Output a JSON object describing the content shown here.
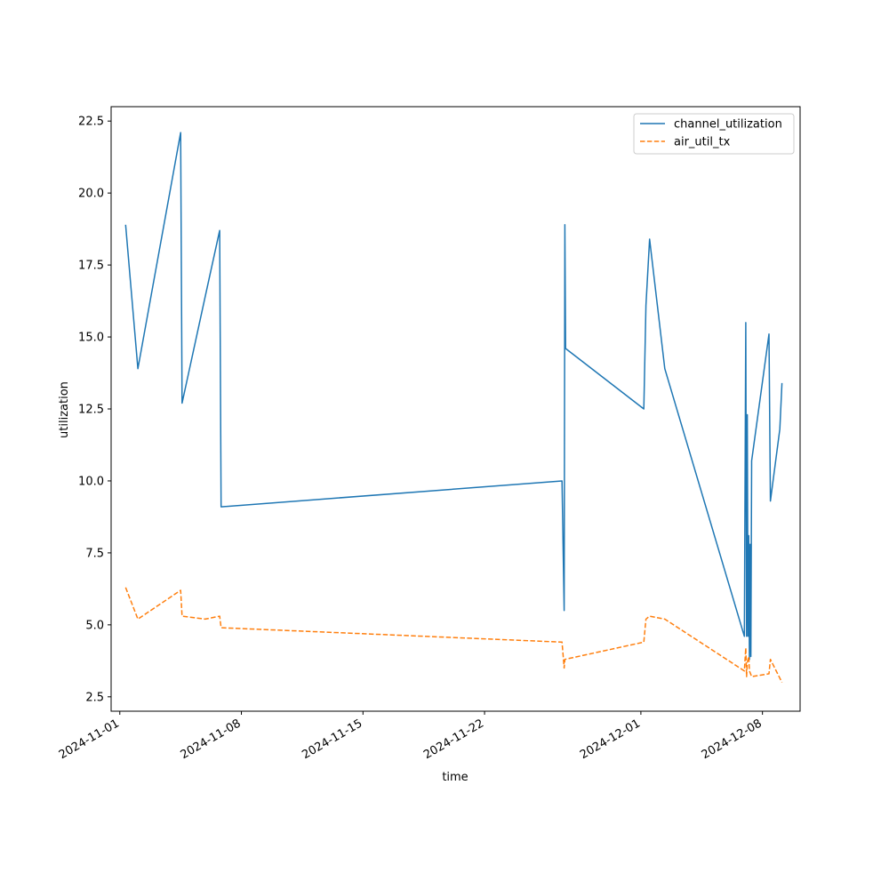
{
  "chart_data": {
    "type": "line",
    "title": "",
    "xlabel": "time",
    "ylabel": "utilization",
    "x_ticks": [
      "2024-11-01",
      "2024-11-08",
      "2024-11-15",
      "2024-11-22",
      "2024-12-01",
      "2024-12-08"
    ],
    "y_ticks": [
      "2.5",
      "5.0",
      "7.5",
      "10.0",
      "12.5",
      "15.0",
      "17.5",
      "20.0",
      "22.5"
    ],
    "xlim": [
      "2024-10-31T12:00",
      "2024-12-10T04:00"
    ],
    "ylim": [
      2.0,
      23.0
    ],
    "grid": false,
    "legend_position": "top-right",
    "series": [
      {
        "name": "channel_utilization",
        "color": "#1f77b4",
        "style": "solid",
        "points": [
          [
            "2024-11-01T08:00",
            18.9
          ],
          [
            "2024-11-02T01:00",
            13.9
          ],
          [
            "2024-11-04T12:00",
            22.1
          ],
          [
            "2024-11-04T14:00",
            12.7
          ],
          [
            "2024-11-05T22:00",
            16.4
          ],
          [
            "2024-11-06T18:00",
            18.7
          ],
          [
            "2024-11-06T20:00",
            9.1
          ],
          [
            "2024-11-26T11:00",
            10.0
          ],
          [
            "2024-11-26T14:00",
            5.5
          ],
          [
            "2024-11-26T15:00",
            18.9
          ],
          [
            "2024-11-26T16:00",
            14.6
          ],
          [
            "2024-12-01T04:00",
            12.5
          ],
          [
            "2024-12-01T07:00",
            16.1
          ],
          [
            "2024-12-01T12:00",
            18.4
          ],
          [
            "2024-12-02T09:00",
            13.9
          ],
          [
            "2024-12-06T23:00",
            4.6
          ],
          [
            "2024-12-07T01:00",
            15.5
          ],
          [
            "2024-12-07T02:00",
            4.6
          ],
          [
            "2024-12-07T03:00",
            12.3
          ],
          [
            "2024-12-07T04:00",
            4.6
          ],
          [
            "2024-12-07T05:00",
            8.1
          ],
          [
            "2024-12-07T06:00",
            3.8
          ],
          [
            "2024-12-07T07:00",
            7.8
          ],
          [
            "2024-12-07T08:00",
            3.9
          ],
          [
            "2024-12-07T09:00",
            10.7
          ],
          [
            "2024-12-08T09:00",
            15.1
          ],
          [
            "2024-12-08T11:00",
            9.3
          ],
          [
            "2024-12-09T00:00",
            11.8
          ],
          [
            "2024-12-09T03:00",
            13.4
          ]
        ]
      },
      {
        "name": "air_util_tx",
        "color": "#ff7f0e",
        "style": "dashed",
        "points": [
          [
            "2024-11-01T08:00",
            6.3
          ],
          [
            "2024-11-02T01:00",
            5.2
          ],
          [
            "2024-11-04T12:00",
            6.2
          ],
          [
            "2024-11-04T14:00",
            5.3
          ],
          [
            "2024-11-05T22:00",
            5.2
          ],
          [
            "2024-11-06T18:00",
            5.3
          ],
          [
            "2024-11-06T20:00",
            4.9
          ],
          [
            "2024-11-26T11:00",
            4.4
          ],
          [
            "2024-11-26T14:00",
            3.5
          ],
          [
            "2024-11-26T15:00",
            3.8
          ],
          [
            "2024-12-01T04:00",
            4.4
          ],
          [
            "2024-12-01T07:00",
            5.2
          ],
          [
            "2024-12-01T12:00",
            5.3
          ],
          [
            "2024-12-02T09:00",
            5.2
          ],
          [
            "2024-12-06T23:00",
            3.4
          ],
          [
            "2024-12-07T01:00",
            4.2
          ],
          [
            "2024-12-07T02:00",
            3.2
          ],
          [
            "2024-12-07T03:00",
            3.7
          ],
          [
            "2024-12-07T05:00",
            3.9
          ],
          [
            "2024-12-07T06:00",
            3.4
          ],
          [
            "2024-12-07T09:00",
            3.2
          ],
          [
            "2024-12-08T09:00",
            3.3
          ],
          [
            "2024-12-08T11:00",
            3.8
          ],
          [
            "2024-12-09T03:00",
            3.0
          ]
        ]
      }
    ]
  }
}
